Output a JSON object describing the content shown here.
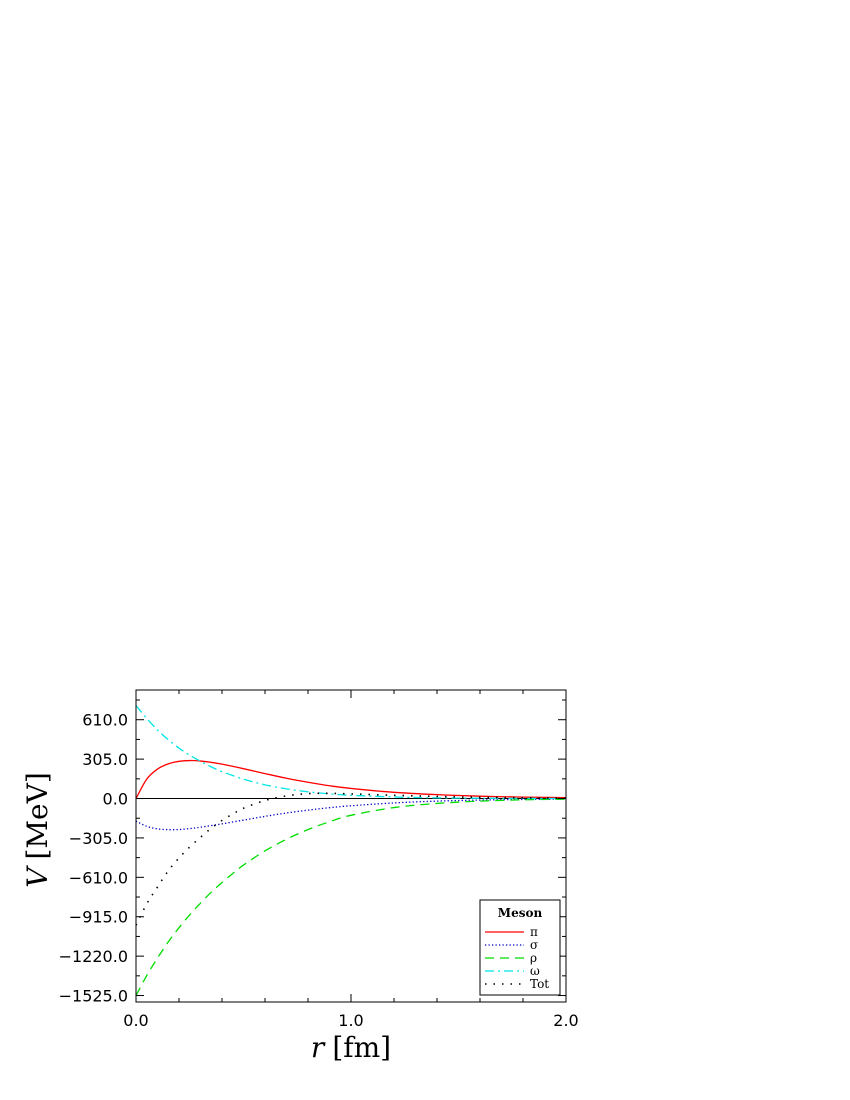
{
  "chart_data": {
    "type": "line",
    "xlabel_var": "r",
    "xlabel_unit": "[fm]",
    "ylabel_var": "V",
    "ylabel_unit": "[MeV]",
    "xlim": [
      0.0,
      2.0
    ],
    "ylim": [
      -1575,
      840
    ],
    "xticks": [
      0.0,
      1.0,
      2.0
    ],
    "xtick_labels": [
      "0.0",
      "1.0",
      "2.0"
    ],
    "yticks": [
      610,
      305,
      0,
      -305,
      -610,
      -915,
      -1220,
      -1525
    ],
    "ytick_labels": [
      "610.0",
      "305.0",
      "0.0",
      "−305.0",
      "−610.0",
      "−915.0",
      "−1220.0",
      "−1525.0"
    ],
    "zero_line": true,
    "grid": false,
    "legend": {
      "title": "Meson",
      "position": "bottom-right"
    },
    "series": [
      {
        "name": "π",
        "color": "#ff0000",
        "style": "solid",
        "x": [
          0.0,
          0.05,
          0.1,
          0.15,
          0.2,
          0.25,
          0.3,
          0.35,
          0.4,
          0.5,
          0.6,
          0.7,
          0.8,
          0.9,
          1.0,
          1.2,
          1.4,
          1.6,
          1.8,
          2.0
        ],
        "values": [
          0,
          150,
          228,
          268,
          288,
          294,
          290,
          280,
          266,
          231,
          193,
          157,
          126,
          99,
          78,
          48,
          30,
          18,
          11,
          7
        ]
      },
      {
        "name": "σ",
        "color": "#0000cc",
        "style": "dotted",
        "x": [
          0.0,
          0.05,
          0.1,
          0.15,
          0.2,
          0.25,
          0.3,
          0.4,
          0.5,
          0.6,
          0.7,
          0.8,
          0.9,
          1.0,
          1.2,
          1.4,
          1.6,
          1.8,
          2.0
        ],
        "values": [
          -175,
          -215,
          -235,
          -241,
          -240,
          -233,
          -222,
          -196,
          -167,
          -138,
          -112,
          -90,
          -71,
          -56,
          -34,
          -20,
          -12,
          -7,
          -4
        ]
      },
      {
        "name": "ρ",
        "color": "#00dd00",
        "style": "dashed",
        "x": [
          0.0,
          0.05,
          0.1,
          0.15,
          0.2,
          0.25,
          0.3,
          0.35,
          0.4,
          0.45,
          0.5,
          0.6,
          0.7,
          0.8,
          0.9,
          1.0,
          1.2,
          1.4,
          1.6,
          1.8,
          2.0
        ],
        "values": [
          -1525,
          -1370,
          -1235,
          -1110,
          -1000,
          -900,
          -810,
          -725,
          -650,
          -580,
          -515,
          -405,
          -315,
          -240,
          -180,
          -130,
          -70,
          -38,
          -20,
          -10,
          -5
        ]
      },
      {
        "name": "ω",
        "color": "#00e5e5",
        "style": "dashdot",
        "x": [
          0.0,
          0.05,
          0.1,
          0.15,
          0.2,
          0.25,
          0.3,
          0.35,
          0.4,
          0.5,
          0.6,
          0.7,
          0.8,
          0.9,
          1.0,
          1.2,
          1.4,
          1.6,
          1.8,
          2.0
        ],
        "values": [
          720,
          620,
          530,
          455,
          390,
          335,
          288,
          245,
          208,
          150,
          106,
          75,
          52,
          36,
          25,
          12,
          5,
          2,
          1,
          0
        ]
      },
      {
        "name": "Tot",
        "color": "#000000",
        "style": "loose-dotted",
        "x": [
          0.0,
          0.05,
          0.1,
          0.15,
          0.2,
          0.25,
          0.3,
          0.35,
          0.4,
          0.45,
          0.5,
          0.6,
          0.7,
          0.8,
          0.9,
          1.0,
          1.2,
          1.4,
          1.6,
          1.8,
          2.0
        ],
        "values": [
          -980,
          -815,
          -685,
          -560,
          -460,
          -375,
          -300,
          -230,
          -170,
          -120,
          -75,
          -15,
          20,
          38,
          40,
          36,
          25,
          16,
          9,
          5,
          2
        ]
      }
    ]
  }
}
